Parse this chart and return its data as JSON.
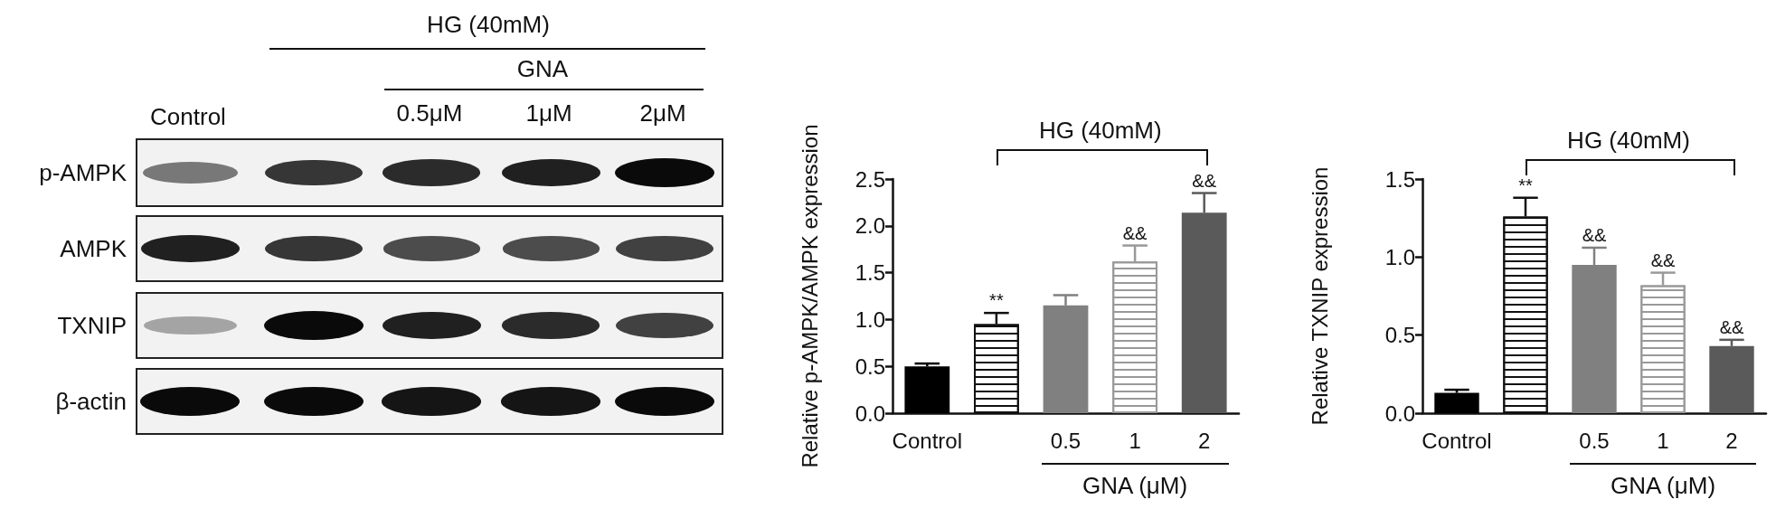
{
  "chart_data": [
    {
      "type": "other",
      "annotations": [
        "HG (40mM)",
        "GNA",
        "Control",
        "0.5μM",
        "1μM",
        "2μM",
        "p-AMPK",
        "AMPK",
        "TXNIP",
        "β-actin"
      ]
    },
    {
      "type": "bar",
      "ylabel": "Relative p-AMPK/AMPK expression",
      "categories": [
        "Control",
        null,
        "0.5",
        "1",
        "2"
      ],
      "values": [
        0.5,
        0.95,
        1.15,
        1.62,
        2.14
      ],
      "colors": [
        "#000000",
        "#ffffff",
        "#808080",
        "#ffffff",
        "#5a5a5a"
      ],
      "errors": [
        [
          0.5,
          0.53
        ],
        [
          0.95,
          1.07
        ],
        [
          1.15,
          1.26
        ],
        [
          1.62,
          1.79
        ],
        [
          2.14,
          2.35
        ]
      ],
      "ylim": [
        0,
        2.5
      ],
      "yticks": [
        "0.0",
        0.5,
        "1.0",
        1.5,
        "2.0",
        2.5
      ],
      "annotations": [
        {
          "text": "**",
          "y": 1.07
        },
        {
          "text": "&&",
          "x": "1",
          "y": 1.79
        },
        {
          "text": "&&",
          "x": "2",
          "y": 2.35
        },
        "HG (40mM)",
        "GNA (μM)"
      ]
    },
    {
      "type": "bar",
      "ylabel": "Relative TXNIP expression",
      "categories": [
        "Control",
        null,
        "0.5",
        "1",
        "2"
      ],
      "values": [
        0.13,
        1.26,
        0.95,
        0.82,
        0.43
      ],
      "colors": [
        "#000000",
        "#ffffff",
        "#808080",
        "#ffffff",
        "#5a5a5a"
      ],
      "errors": [
        [
          0.13,
          0.15
        ],
        [
          1.26,
          1.38
        ],
        [
          0.95,
          1.06
        ],
        [
          0.82,
          0.9
        ],
        [
          0.43,
          0.47
        ]
      ],
      "ylim": [
        0,
        1.5
      ],
      "yticks": [
        "0.0",
        0.5,
        "1.0",
        1.5
      ],
      "annotations": [
        {
          "text": "**",
          "y": 1.38
        },
        {
          "text": "&&",
          "x": "0.5",
          "y": 1.06
        },
        {
          "text": "&&",
          "x": "1",
          "y": 0.9
        },
        {
          "text": "&&",
          "x": "2",
          "y": 0.47
        },
        "HG (40mM)",
        "GNA (μM)"
      ]
    }
  ]
}
